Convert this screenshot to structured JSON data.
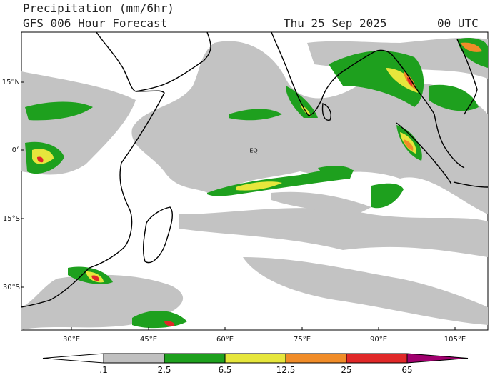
{
  "header": {
    "title": "Precipitation (mm/6hr)",
    "subtitle": "GFS 006 Hour Forecast",
    "date": "Thu 25 Sep 2025",
    "time": "00 UTC"
  },
  "map": {
    "lat_labels": [
      "15°N",
      "0°",
      "15°S",
      "30°S"
    ],
    "lon_labels": [
      "30°E",
      "45°E",
      "60°E",
      "75°E",
      "90°E",
      "105°E"
    ],
    "equator_label": "EQ"
  },
  "colorbar": {
    "labels": [
      ".1",
      "2.5",
      "6.5",
      "12.5",
      "25",
      "65"
    ],
    "colors": [
      "#ffffff",
      "#c0c0c0",
      "#1ea01e",
      "#e6e63c",
      "#f08c28",
      "#e02828",
      "#a0006e"
    ]
  }
}
